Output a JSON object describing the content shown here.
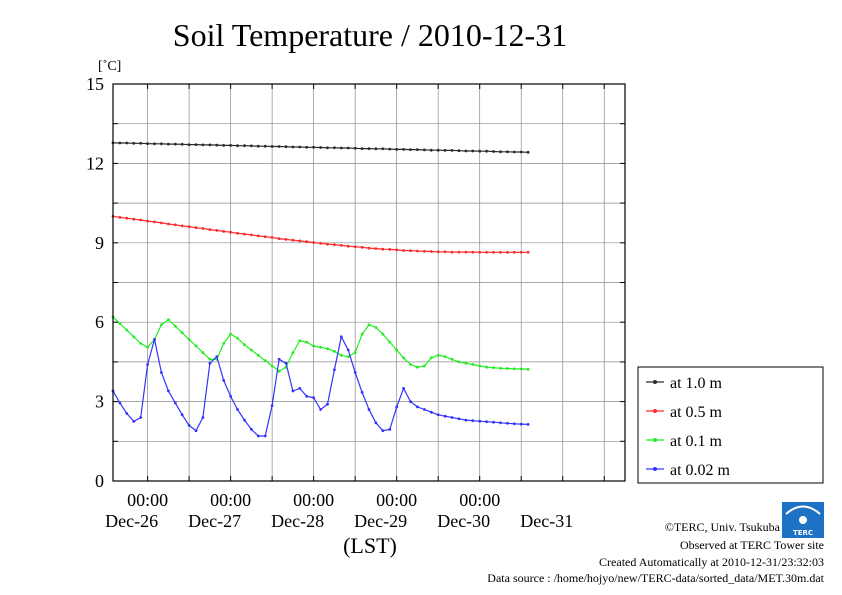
{
  "chart_data": {
    "type": "line",
    "title": "Soil Temperature / 2010-12-31",
    "unit_label": "[˚C]",
    "xlabel": "(LST)",
    "ylabel": "",
    "ylim": [
      0,
      15
    ],
    "xlim": [
      "2010-12-25 14:00",
      "2010-12-31 18:00"
    ],
    "yticks": [
      "0",
      "3",
      "6",
      "9",
      "12",
      "15"
    ],
    "xticks": [
      {
        "time": "00:00",
        "date": "Dec-26"
      },
      {
        "time": "00:00",
        "date": "Dec-27"
      },
      {
        "time": "00:00",
        "date": "Dec-28"
      },
      {
        "time": "00:00",
        "date": "Dec-29"
      },
      {
        "time": "00:00",
        "date": "Dec-30"
      },
      {
        "time": "",
        "date": "Dec-31"
      }
    ],
    "grid": true,
    "legend_position": "right",
    "x_start": "2010-12-25 14:00",
    "x_step_hours": 2,
    "series": [
      {
        "name": "at 1.0 m",
        "color": "#2a2a2a",
        "values": [
          12.78,
          12.77,
          12.77,
          12.76,
          12.76,
          12.75,
          12.74,
          12.74,
          12.73,
          12.73,
          12.72,
          12.71,
          12.71,
          12.7,
          12.7,
          12.69,
          12.68,
          12.68,
          12.67,
          12.67,
          12.66,
          12.65,
          12.65,
          12.64,
          12.64,
          12.63,
          12.62,
          12.62,
          12.61,
          12.61,
          12.6,
          12.59,
          12.59,
          12.58,
          12.58,
          12.57,
          12.56,
          12.56,
          12.55,
          12.55,
          12.54,
          12.53,
          12.53,
          12.52,
          12.52,
          12.51,
          12.5,
          12.5,
          12.49,
          12.49,
          12.48,
          12.47,
          12.47,
          12.46,
          12.46,
          12.45,
          12.44,
          12.44,
          12.43,
          12.43,
          12.42
        ]
      },
      {
        "name": "at 0.5 m",
        "color": "#ff2a2a",
        "values": [
          10.0,
          9.96,
          9.93,
          9.89,
          9.86,
          9.82,
          9.79,
          9.75,
          9.71,
          9.68,
          9.64,
          9.61,
          9.57,
          9.54,
          9.5,
          9.47,
          9.43,
          9.4,
          9.36,
          9.33,
          9.3,
          9.26,
          9.23,
          9.2,
          9.16,
          9.13,
          9.1,
          9.07,
          9.04,
          9.01,
          8.98,
          8.95,
          8.93,
          8.9,
          8.87,
          8.85,
          8.83,
          8.8,
          8.78,
          8.76,
          8.75,
          8.73,
          8.71,
          8.7,
          8.69,
          8.68,
          8.67,
          8.66,
          8.66,
          8.65,
          8.65,
          8.65,
          8.65,
          8.64,
          8.64,
          8.64,
          8.64,
          8.64,
          8.64,
          8.64,
          8.64
        ]
      },
      {
        "name": "at 0.1 m",
        "color": "#22ee22",
        "values": [
          6.2,
          5.95,
          5.7,
          5.45,
          5.2,
          5.05,
          5.35,
          5.9,
          6.1,
          5.85,
          5.6,
          5.35,
          5.1,
          4.85,
          4.6,
          4.6,
          5.2,
          5.55,
          5.4,
          5.15,
          4.95,
          4.75,
          4.55,
          4.35,
          4.15,
          4.3,
          4.85,
          5.3,
          5.25,
          5.1,
          5.05,
          5.0,
          4.9,
          4.75,
          4.7,
          4.85,
          5.55,
          5.9,
          5.8,
          5.55,
          5.25,
          4.95,
          4.65,
          4.4,
          4.3,
          4.35,
          4.65,
          4.75,
          4.7,
          4.6,
          4.5,
          4.45,
          4.4,
          4.35,
          4.3,
          4.28,
          4.26,
          4.25,
          4.24,
          4.23,
          4.22
        ]
      },
      {
        "name": "at 0.02 m",
        "color": "#3333ff",
        "values": [
          3.4,
          2.95,
          2.55,
          2.25,
          2.4,
          4.4,
          5.35,
          4.1,
          3.4,
          2.95,
          2.5,
          2.1,
          1.9,
          2.4,
          4.45,
          4.7,
          3.8,
          3.2,
          2.7,
          2.3,
          1.95,
          1.7,
          1.7,
          2.85,
          4.6,
          4.45,
          3.4,
          3.5,
          3.2,
          3.15,
          2.7,
          2.9,
          4.2,
          5.45,
          4.95,
          4.1,
          3.35,
          2.7,
          2.2,
          1.9,
          1.95,
          2.8,
          3.5,
          3.0,
          2.8,
          2.7,
          2.6,
          2.5,
          2.45,
          2.4,
          2.35,
          2.3,
          2.28,
          2.26,
          2.24,
          2.22,
          2.2,
          2.18,
          2.16,
          2.15,
          2.14
        ]
      }
    ]
  },
  "footer": {
    "credit": "©TERC, Univ. Tsukuba",
    "observed": "Observed at TERC Tower site",
    "created": "Created Automatically at 2010-12-31/23:32:03",
    "source": "Data source : /home/hojyo/new/TERC-data/sorted_data/MET.30m.dat",
    "logo_text": "TERC"
  }
}
